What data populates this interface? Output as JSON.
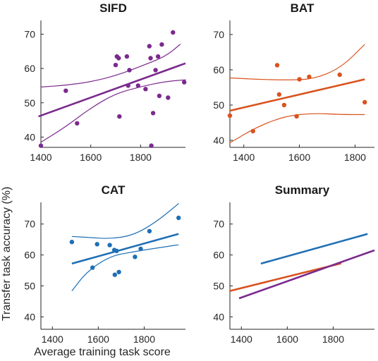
{
  "figure": {
    "ylabel": "Transfer task accuracy (%)",
    "xlabel": "Average training task score"
  },
  "colors": {
    "sifd": "#7b2a8e",
    "bat": "#d9531e",
    "cat": "#1f6fb5"
  },
  "chart_data": [
    {
      "type": "scatter",
      "title": "SIFD",
      "color": "#7b2a8e",
      "xlim": [
        1400,
        1980
      ],
      "ylim": [
        37,
        74
      ],
      "xticks": [
        1400,
        1600,
        1800
      ],
      "yticks": [
        40,
        50,
        60,
        70
      ],
      "points": [
        [
          1400,
          37.5
        ],
        [
          1500,
          53.5
        ],
        [
          1545,
          44
        ],
        [
          1700,
          61
        ],
        [
          1705,
          63.5
        ],
        [
          1712,
          63
        ],
        [
          1715,
          46
        ],
        [
          1745,
          63.5
        ],
        [
          1750,
          55
        ],
        [
          1755,
          59.5
        ],
        [
          1790,
          55
        ],
        [
          1820,
          54
        ],
        [
          1835,
          66.5
        ],
        [
          1840,
          63
        ],
        [
          1843,
          37.5
        ],
        [
          1850,
          47
        ],
        [
          1860,
          59.5
        ],
        [
          1870,
          63.5
        ],
        [
          1875,
          52
        ],
        [
          1885,
          67
        ],
        [
          1910,
          51.5
        ],
        [
          1930,
          70.5
        ],
        [
          1975,
          56
        ]
      ],
      "fit": [
        [
          1390,
          46
        ],
        [
          1980,
          61.5
        ]
      ],
      "ci_upper": [
        [
          1400,
          54.6
        ],
        [
          1500,
          55.1
        ],
        [
          1600,
          56.1
        ],
        [
          1700,
          57.9
        ],
        [
          1800,
          60.6
        ],
        [
          1900,
          63.5
        ],
        [
          1960,
          67.1
        ]
      ],
      "ci_lower": [
        [
          1400,
          38.5
        ],
        [
          1500,
          43
        ],
        [
          1600,
          48.5
        ],
        [
          1700,
          52.7
        ],
        [
          1800,
          54.7
        ],
        [
          1900,
          56.2
        ],
        [
          1980,
          56.7
        ]
      ]
    },
    {
      "type": "scatter",
      "title": "BAT",
      "color": "#d9531e",
      "xlim": [
        1350,
        1870
      ],
      "ylim": [
        38,
        74
      ],
      "xticks": [
        1400,
        1600,
        1800
      ],
      "yticks": [
        40,
        50,
        60,
        70
      ],
      "points": [
        [
          1350,
          47
        ],
        [
          1433,
          42.6
        ],
        [
          1520,
          61.3
        ],
        [
          1527,
          53
        ],
        [
          1545,
          50
        ],
        [
          1590,
          46.8
        ],
        [
          1600,
          57.3
        ],
        [
          1635,
          58
        ],
        [
          1745,
          58.6
        ],
        [
          1835,
          50.8
        ]
      ],
      "fit": [
        [
          1350,
          48.4
        ],
        [
          1835,
          57.3
        ]
      ],
      "ci_upper": [
        [
          1350,
          57.7
        ],
        [
          1450,
          57.3
        ],
        [
          1550,
          57.1
        ],
        [
          1650,
          57.3
        ],
        [
          1750,
          60.6
        ],
        [
          1835,
          67.2
        ]
      ],
      "ci_lower": [
        [
          1350,
          39.3
        ],
        [
          1450,
          43.9
        ],
        [
          1550,
          46.9
        ],
        [
          1650,
          47.7
        ],
        [
          1750,
          47.3
        ],
        [
          1835,
          47.3
        ]
      ]
    },
    {
      "type": "scatter",
      "title": "CAT",
      "color": "#1f6fb5",
      "xlim": [
        1350,
        1980
      ],
      "ylim": [
        36,
        77
      ],
      "xticks": [
        1400,
        1600,
        1800
      ],
      "yticks": [
        40,
        50,
        60,
        70
      ],
      "points": [
        [
          1485,
          64.2
        ],
        [
          1575,
          55.9
        ],
        [
          1595,
          63.5
        ],
        [
          1650,
          63.2
        ],
        [
          1670,
          61.6
        ],
        [
          1672,
          53.6
        ],
        [
          1680,
          61.3
        ],
        [
          1690,
          54.5
        ],
        [
          1760,
          59.4
        ],
        [
          1785,
          62
        ],
        [
          1823,
          67.7
        ],
        [
          1950,
          72
        ]
      ],
      "fit": [
        [
          1485,
          57.2
        ],
        [
          1950,
          66.8
        ]
      ],
      "ci_upper": [
        [
          1485,
          66
        ],
        [
          1550,
          65.7
        ],
        [
          1650,
          65.2
        ],
        [
          1750,
          66.3
        ],
        [
          1850,
          70.5
        ],
        [
          1950,
          76.6
        ]
      ],
      "ci_lower": [
        [
          1485,
          48.4
        ],
        [
          1550,
          54.6
        ],
        [
          1650,
          59.6
        ],
        [
          1750,
          61
        ],
        [
          1850,
          62.2
        ],
        [
          1950,
          63.3
        ]
      ]
    },
    {
      "type": "line",
      "title": "Summary",
      "xlim": [
        1350,
        1980
      ],
      "ylim": [
        36,
        77
      ],
      "xticks": [
        1400,
        1600,
        1800
      ],
      "yticks": [
        40,
        50,
        60,
        70
      ],
      "lines": [
        {
          "color": "#1f6fb5",
          "points": [
            [
              1485,
              57.2
            ],
            [
              1950,
              66.8
            ]
          ]
        },
        {
          "color": "#d9531e",
          "points": [
            [
              1350,
              48.4
            ],
            [
              1835,
              57.3
            ]
          ]
        },
        {
          "color": "#7b2a8e",
          "points": [
            [
              1390,
              46
            ],
            [
              1980,
              61.5
            ]
          ]
        }
      ]
    }
  ]
}
